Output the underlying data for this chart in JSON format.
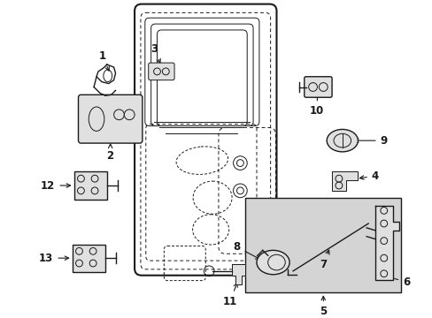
{
  "bg_color": "#ffffff",
  "line_color": "#1a1a1a",
  "gray_fill": "#e0e0e0",
  "inset_fill": "#d4d4d4",
  "figsize": [
    4.89,
    3.6
  ],
  "dpi": 100
}
